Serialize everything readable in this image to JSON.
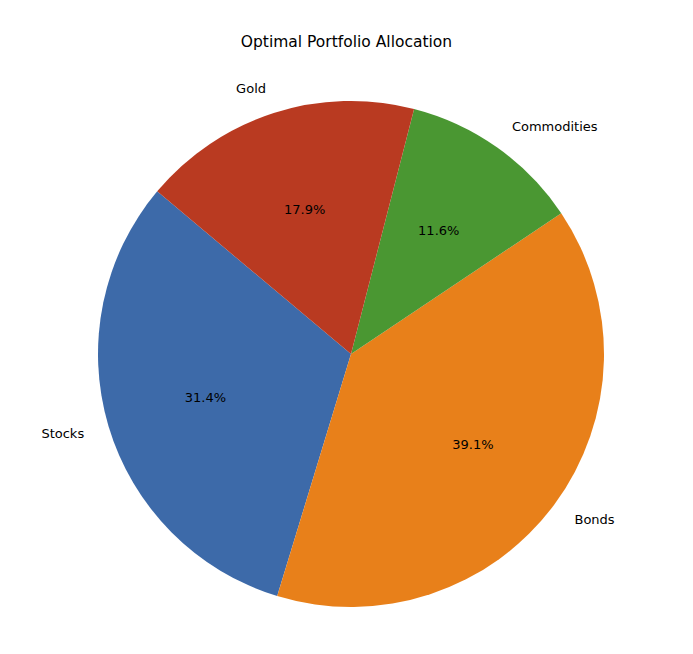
{
  "chart_data": {
    "type": "pie",
    "title": "Optimal Portfolio Allocation",
    "categories": [
      "Stocks",
      "Bonds",
      "Commodities",
      "Gold"
    ],
    "values": [
      31.4,
      39.1,
      11.6,
      17.9
    ],
    "value_labels": [
      "31.4%",
      "39.1%",
      "11.6%",
      "17.9%"
    ],
    "colors": [
      "#3d6aa9",
      "#e8801a",
      "#4a9732",
      "#b93a21"
    ],
    "data_labels": true
  }
}
